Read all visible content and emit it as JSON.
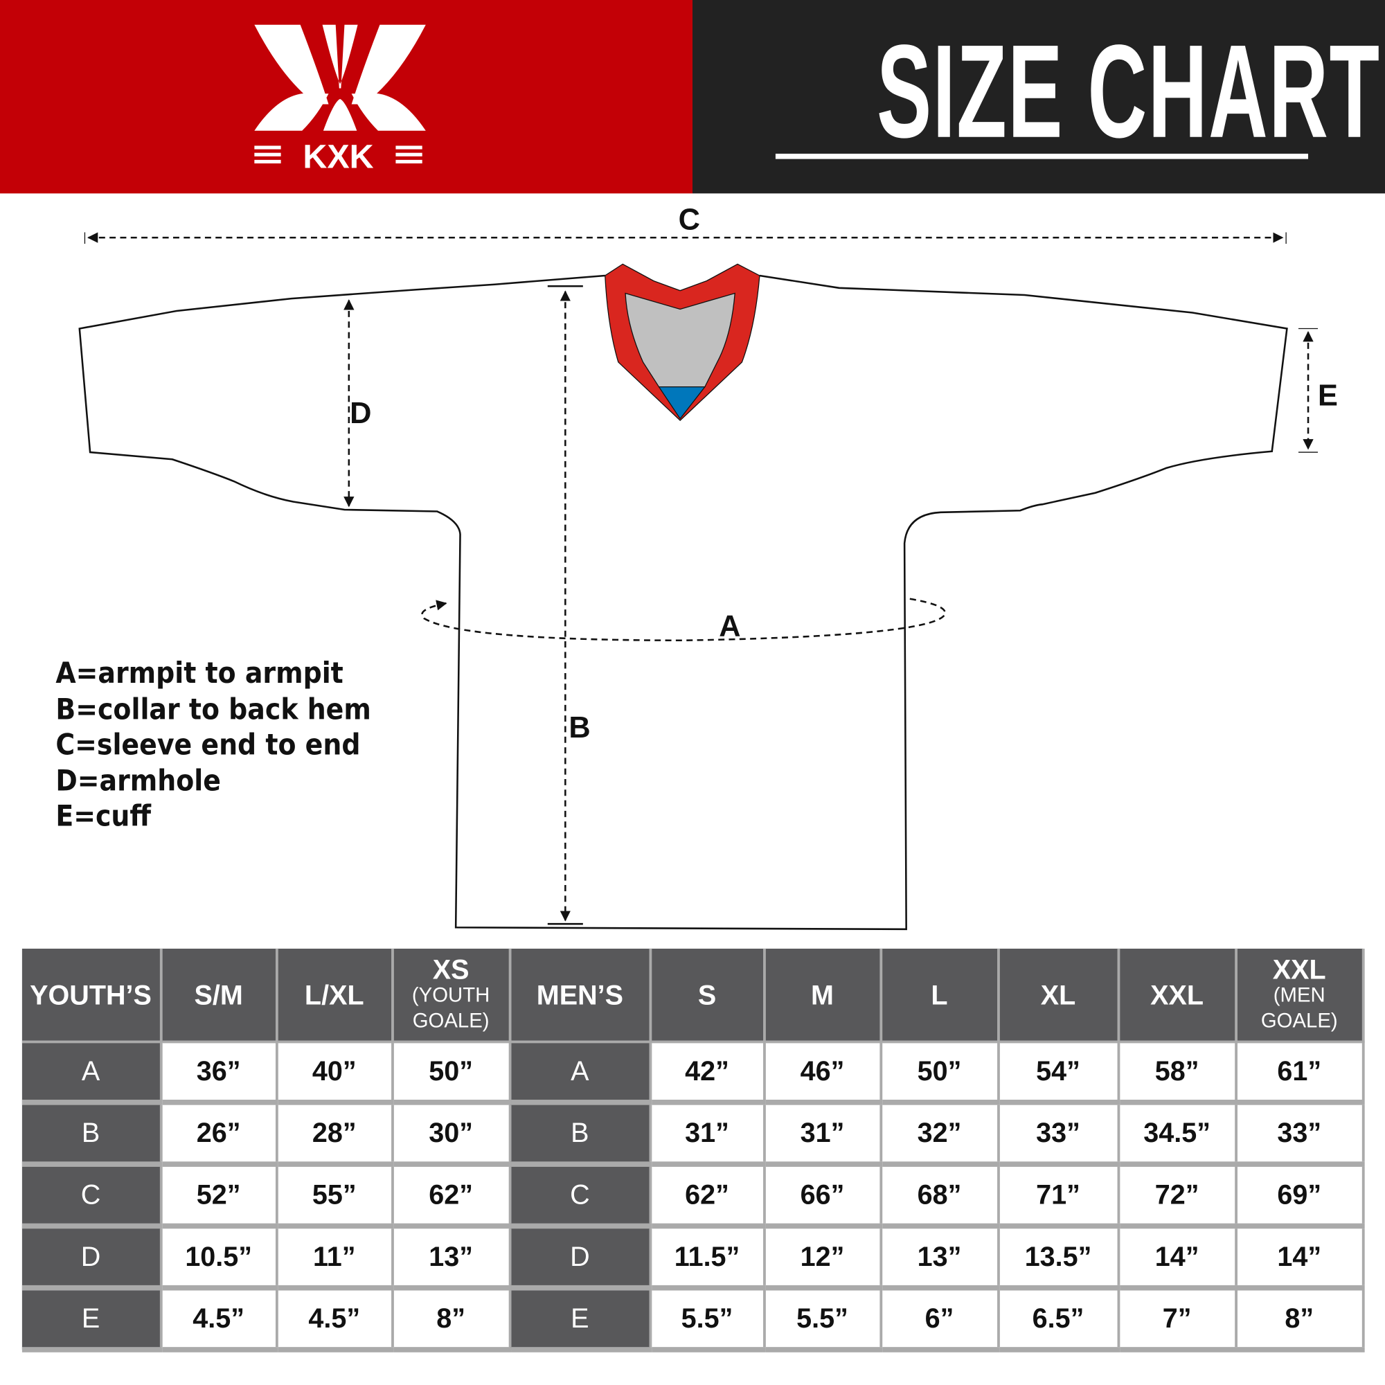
{
  "brand": {
    "name": "KXK",
    "colors": {
      "red": "#c30006",
      "dark": "#222222",
      "collar_red": "#d9261f",
      "collar_gray": "#c0c0c0",
      "collar_blue": "#0077bb"
    }
  },
  "header": {
    "title": "SIZE CHART"
  },
  "diagram": {
    "labels": {
      "a": "A",
      "b": "B",
      "c": "C",
      "d": "D",
      "e": "E"
    },
    "legend": [
      "A=armpit to armpit",
      "B=collar to back hem",
      "C=sleeve end to end",
      "D=armhole",
      "E=cuff"
    ]
  },
  "table": {
    "headers": [
      {
        "main": "YOUTH’S"
      },
      {
        "main": "S/M"
      },
      {
        "main": "L/XL"
      },
      {
        "main": "XS",
        "sub": "(YOUTH GOALE)"
      },
      {
        "main": "MEN’S"
      },
      {
        "main": "S"
      },
      {
        "main": "M"
      },
      {
        "main": "L"
      },
      {
        "main": "XL"
      },
      {
        "main": "XXL"
      },
      {
        "main": "XXL",
        "sub": "(MEN GOALE)"
      }
    ],
    "rows": [
      [
        "A",
        "36”",
        "40”",
        "50”",
        "A",
        "42”",
        "46”",
        "50”",
        "54”",
        "58”",
        "61”"
      ],
      [
        "B",
        "26”",
        "28”",
        "30”",
        "B",
        "31”",
        "31”",
        "32”",
        "33”",
        "34.5”",
        "33”"
      ],
      [
        "C",
        "52”",
        "55”",
        "62”",
        "C",
        "62”",
        "66”",
        "68”",
        "71”",
        "72”",
        "69”"
      ],
      [
        "D",
        "10.5”",
        "11”",
        "13”",
        "D",
        "11.5”",
        "12”",
        "13”",
        "13.5”",
        "14”",
        "14”"
      ],
      [
        "E",
        "4.5”",
        "4.5”",
        "8”",
        "E",
        "5.5”",
        "5.5”",
        "6”",
        "6.5”",
        "7”",
        "8”"
      ]
    ]
  }
}
